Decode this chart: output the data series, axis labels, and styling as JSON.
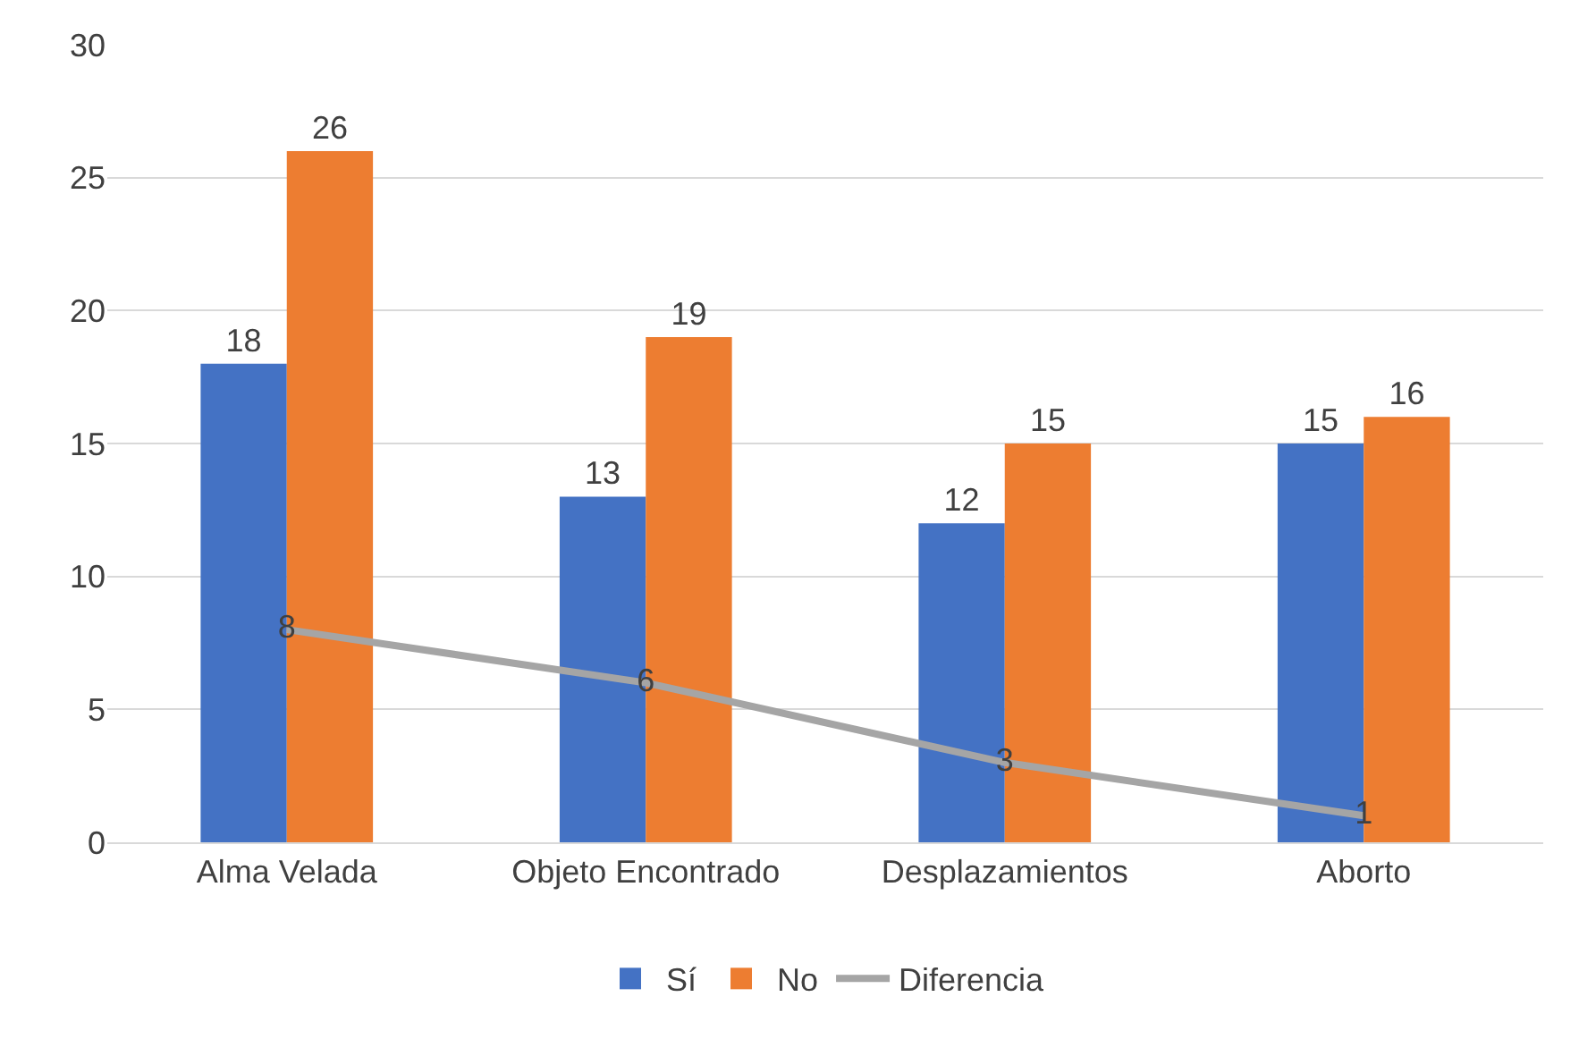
{
  "chart_data": {
    "type": "bar",
    "categories": [
      "Alma Velada",
      "Objeto Encontrado",
      "Desplazamientos",
      "Aborto"
    ],
    "series": [
      {
        "name": "Sí",
        "color": "#4472c4",
        "values": [
          18,
          13,
          12,
          15
        ]
      },
      {
        "name": "No",
        "color": "#ed7d31",
        "values": [
          26,
          19,
          15,
          16
        ]
      },
      {
        "name": "Diferencia",
        "type": "line",
        "color": "#a5a5a5",
        "values": [
          8,
          6,
          3,
          1
        ]
      }
    ],
    "ylim": [
      0,
      30
    ],
    "yticks": [
      0,
      5,
      10,
      15,
      20,
      25,
      30
    ],
    "grid": "y",
    "legend": "bottom",
    "data_labels": true,
    "marker": "none",
    "line_style": "solid"
  }
}
